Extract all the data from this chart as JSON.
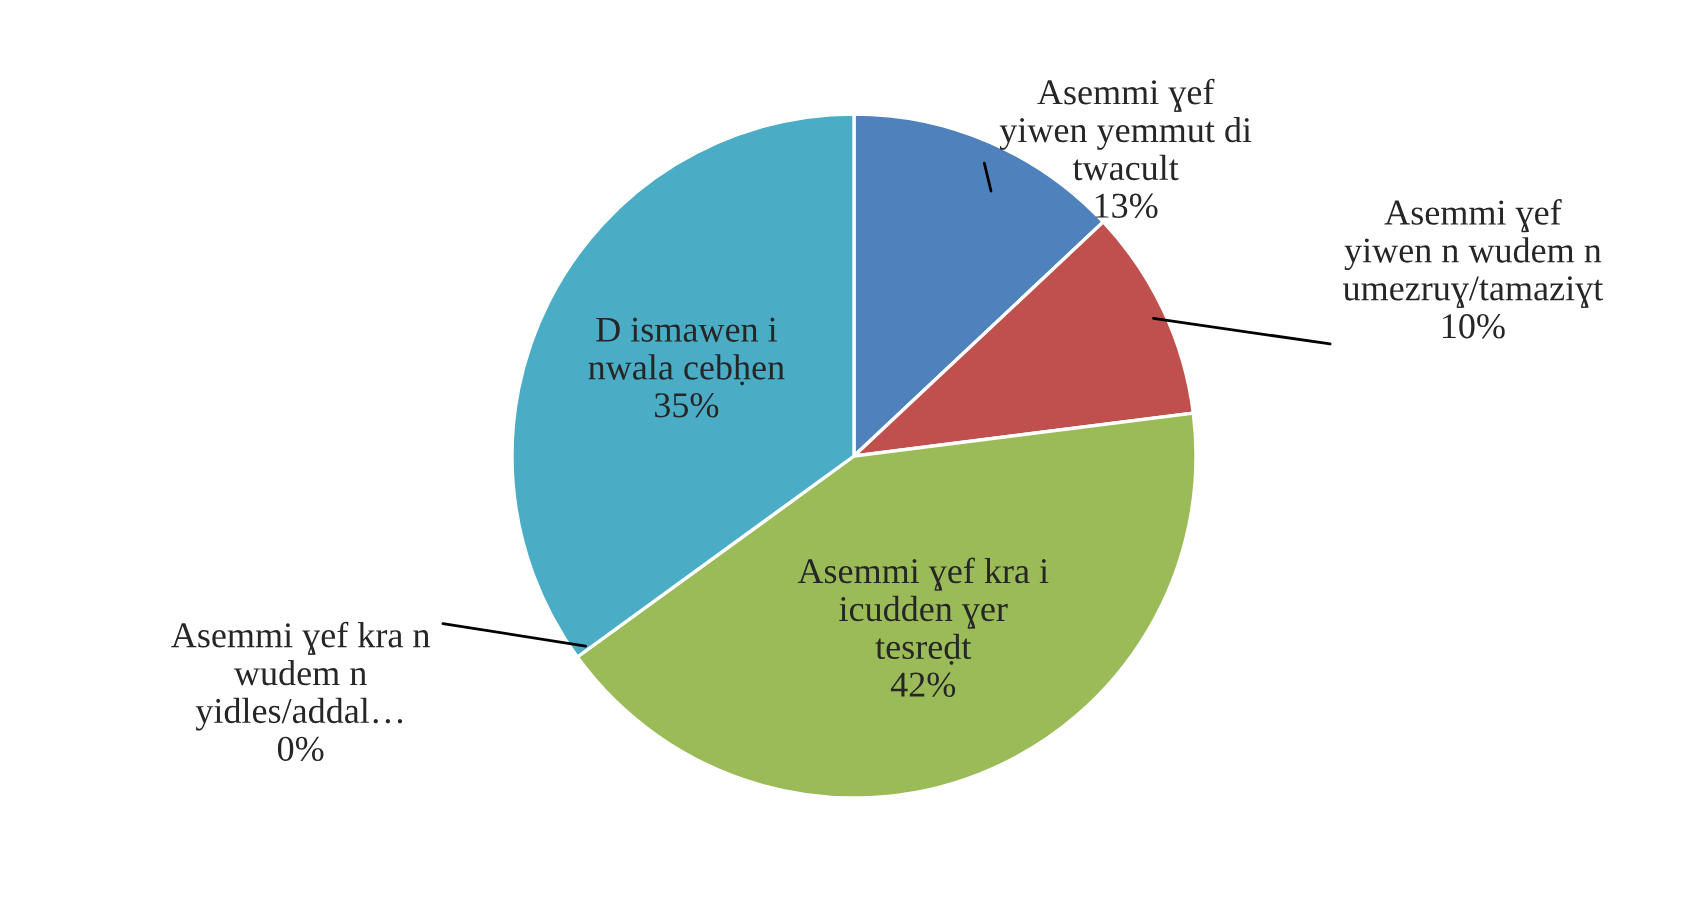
{
  "chart_data": {
    "type": "pie",
    "categories": [
      "Asemmi ɣef\nyiwen yemmut di\ntwacult",
      "Asemmi ɣef\nyiwen n wudem n\numezruɣ/tamaziɣt",
      "Asemmi ɣef kra i\nicudden ɣer\ntesreḍt",
      "Asemmi ɣef kra n\nwudem n\nyidles/addal…",
      "D ismawen i\nnwala cebḥen"
    ],
    "values": [
      13,
      10,
      42,
      0,
      35
    ],
    "value_labels": [
      "13%",
      "10%",
      "42%",
      "0%",
      "35%"
    ],
    "colors": [
      "#4f81bd",
      "#c0504d",
      "#9bbb59",
      "#8064a2",
      "#4bacc6"
    ]
  }
}
